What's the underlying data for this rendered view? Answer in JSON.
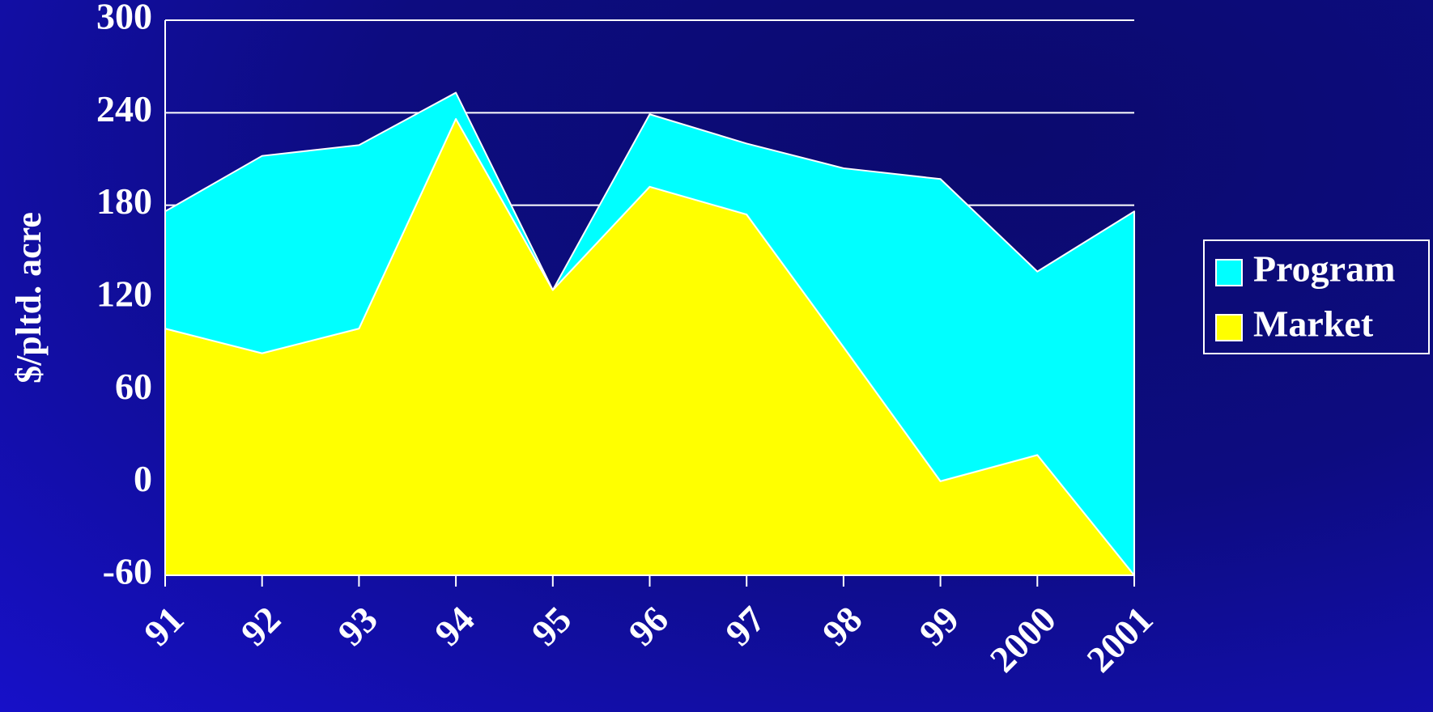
{
  "chart_data": {
    "type": "stacked_area",
    "y_label": "$/pltd. acre",
    "categories": [
      "91",
      "92",
      "93",
      "94",
      "95",
      "96",
      "97",
      "98",
      "99",
      "2000",
      "2001"
    ],
    "series": [
      {
        "name": "Market",
        "color": "#ffff00",
        "values": [
          100,
          84,
          100,
          236,
          125,
          192,
          174,
          88,
          1,
          18,
          -60
        ]
      },
      {
        "name": "Program",
        "color": "#00ffff",
        "values": [
          76,
          128,
          119,
          17,
          0,
          47,
          46,
          116,
          196,
          119,
          236
        ]
      }
    ],
    "ylim": [
      -60,
      300
    ],
    "yticks": [
      -60,
      0,
      60,
      120,
      180,
      240,
      300
    ],
    "grid": true,
    "legend": "right"
  }
}
